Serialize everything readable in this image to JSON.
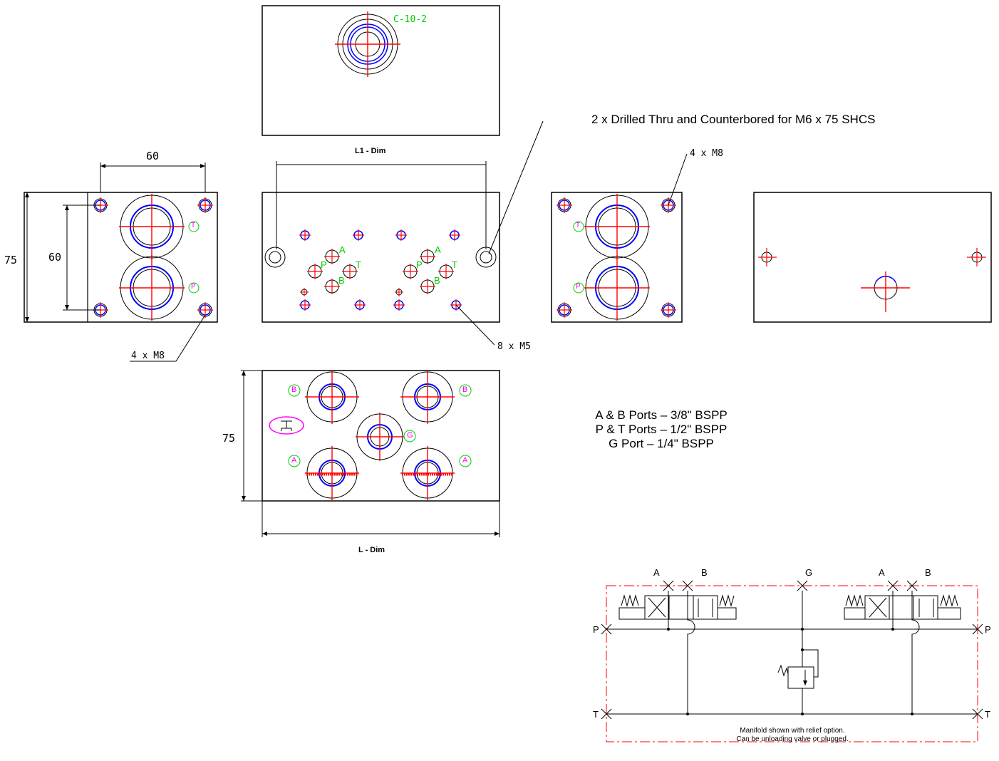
{
  "top_view": {
    "cartridge_label": "C-10-2"
  },
  "dims": {
    "l1": "L1 - Dim",
    "l": "L - Dim",
    "width_60": "60",
    "height_75": "75",
    "inner_60": "60",
    "front_75": "75"
  },
  "callouts": {
    "m8_left": "4 x M8",
    "m8_right": "4 x M8",
    "m5": "8 x M5",
    "drilled": "2 x Drilled Thru and Counterbored for M6 x 75 SHCS"
  },
  "port_letters": {
    "a1": "A",
    "p1": "P",
    "t1": "T",
    "b1": "B",
    "a2": "A",
    "p2": "P",
    "t2": "T",
    "b2": "B",
    "side_t": "T",
    "side_p": "P",
    "side2_t": "T",
    "side2_p": "P",
    "bot_b1": "B",
    "bot_b2": "B",
    "bot_g": "G",
    "bot_a1": "A",
    "bot_a2": "A"
  },
  "port_specs": [
    "A & B Ports – 3/8\" BSPP",
    "P & T Ports – 1/2\" BSPP",
    "G Port – 1/4\" BSPP"
  ],
  "schematic": {
    "labels": {
      "a1": "A",
      "b1": "B",
      "g": "G",
      "a2": "A",
      "b2": "B",
      "p_left": "P",
      "p_right": "P",
      "t_left": "T",
      "t_right": "T"
    },
    "note": [
      "Manifold shown with relief option.",
      "Can be unloading valve or plugged."
    ]
  },
  "colors": {
    "line": "#000000",
    "center": "#ff0000",
    "thread": "#0000ff",
    "green": "#00cc00",
    "magenta": "#ff00ff"
  }
}
